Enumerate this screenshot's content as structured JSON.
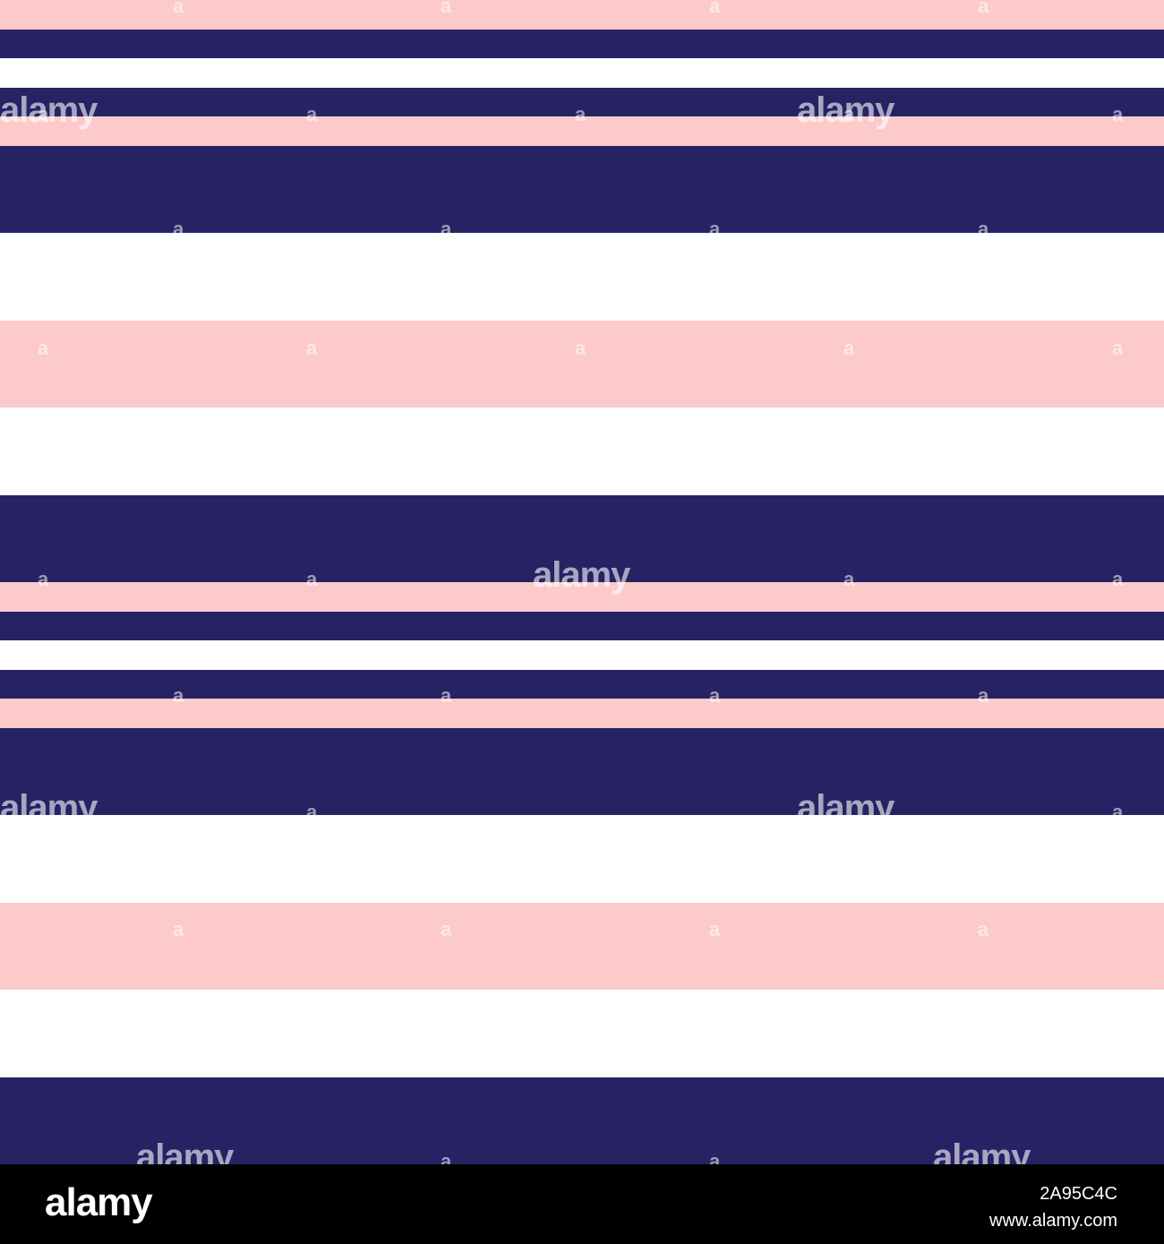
{
  "colors": {
    "navy": "#272264",
    "pink": "#fccaca",
    "white": "#ffffff",
    "footer_bg": "#000000"
  },
  "stripes": [
    "pink",
    "navy",
    "white",
    "navy",
    "pink",
    "navy",
    "navy",
    "navy",
    "white",
    "white",
    "white",
    "pink",
    "pink",
    "pink",
    "white",
    "white",
    "white",
    "navy",
    "navy",
    "navy",
    "pink",
    "navy",
    "white",
    "navy",
    "pink",
    "navy",
    "navy",
    "navy",
    "white",
    "white",
    "white",
    "pink",
    "pink",
    "pink",
    "white",
    "white",
    "white",
    "navy",
    "navy",
    "navy"
  ],
  "watermark": {
    "word": "alamy",
    "glyph": "a"
  },
  "footer": {
    "logo": "alamy",
    "image_id": "2A95C4C",
    "url": "www.alamy.com"
  }
}
